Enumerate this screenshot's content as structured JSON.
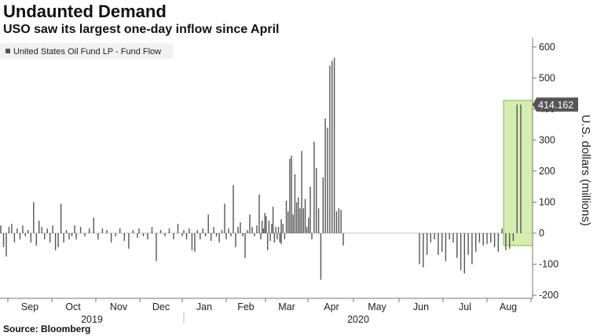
{
  "header": {
    "title": "Undaunted Demand",
    "subtitle": "USO saw its largest one-day inflow since April"
  },
  "footer": {
    "source": "Source: Bloomberg"
  },
  "colors": {
    "bar": "#555555",
    "highlight_fill": "#cfe9a3",
    "highlight_stroke": "#7fbf3f",
    "callout": "#555555",
    "axis": "#777777"
  },
  "chart_data": {
    "type": "bar",
    "title": "Undaunted Demand",
    "ylabel": "U.S. dollars (millions)",
    "ylim": [
      -210,
      630
    ],
    "yticks": [
      -200,
      -100,
      0,
      100,
      200,
      300,
      400,
      500,
      600
    ],
    "legend": {
      "position": "top-left",
      "entries": [
        "United States Oil Fund LP - Fund Flow"
      ]
    },
    "month_labels": [
      "Sep",
      "Oct",
      "Nov",
      "Dec",
      "Jan",
      "Feb",
      "Mar",
      "Apr",
      "May",
      "Jun",
      "Jul",
      "Aug"
    ],
    "year_labels": [
      "2019",
      "2020"
    ],
    "annotation": {
      "label": "414.162",
      "value": 414.162
    },
    "series": [
      {
        "name": "United States Oil Fund LP - Fund Flow",
        "values": [
          25,
          -45,
          -75,
          20,
          30,
          -30,
          15,
          -20,
          25,
          -10,
          10,
          -30,
          100,
          -40,
          40,
          20,
          -20,
          15,
          -30,
          25,
          -55,
          -45,
          95,
          -30,
          10,
          -20,
          -10,
          25,
          -20,
          20,
          -10,
          15,
          50,
          -20,
          15,
          10,
          -30,
          -10,
          15,
          -25,
          -50,
          10,
          -15,
          15,
          -10,
          -20,
          20,
          -90,
          10,
          -10,
          15,
          -20,
          30,
          -10,
          10,
          -20,
          15,
          -55,
          -60,
          10,
          -20,
          15,
          -10,
          60,
          -25,
          20,
          -10,
          -30,
          10,
          95,
          -20,
          15,
          -10,
          155,
          -45,
          20,
          35,
          -10,
          -80,
          10,
          60,
          20,
          -10,
          25,
          125,
          -20,
          40,
          15,
          65,
          55,
          -55,
          40,
          -25,
          30,
          85,
          -30,
          20,
          -20,
          20,
          -30,
          45,
          -35,
          30,
          -20,
          105,
          70,
          240,
          250,
          60,
          190,
          100,
          115,
          80,
          265,
          80,
          110,
          20,
          50,
          150,
          -20,
          295,
          210,
          80,
          -150,
          180,
          370,
          340,
          540,
          555,
          565,
          70,
          80,
          75,
          -40,
          -100,
          -110,
          -70,
          -30,
          -20,
          -70,
          -60,
          -90,
          -20,
          -30,
          -80,
          -120,
          -130,
          -70,
          -100,
          -60,
          -30,
          -40,
          -35,
          -30,
          -45,
          -60,
          15,
          -55,
          -50,
          -25,
          414.162
        ]
      }
    ]
  }
}
